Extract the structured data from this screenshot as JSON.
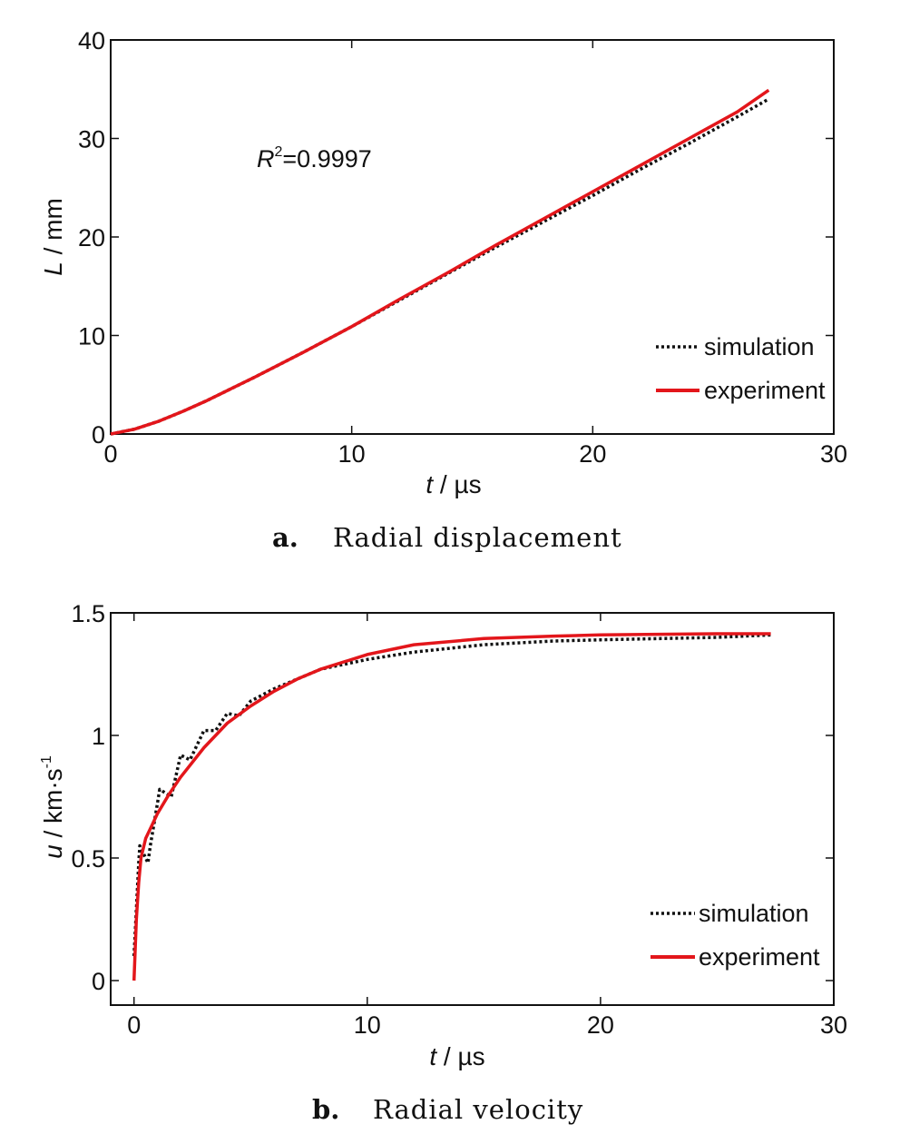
{
  "chart_data": [
    {
      "type": "line",
      "caption_letter": "a.",
      "caption": "Radial displacement",
      "xlabel_var": "t",
      "xlabel_unit": " / µs",
      "ylabel_var": "L",
      "ylabel_unit": " / mm",
      "xlim": [
        0,
        30
      ],
      "ylim": [
        0,
        40
      ],
      "xticks": [
        0,
        10,
        20,
        30
      ],
      "yticks": [
        0,
        10,
        20,
        30,
        40
      ],
      "annotation_var": "R",
      "annotation_sup": "2",
      "annotation_value": "=0.9997",
      "legend_position": "bottom-right",
      "grid": false,
      "series": [
        {
          "name": "simulation",
          "color": "#111111",
          "style": "dotted",
          "x": [
            0,
            1,
            2,
            3,
            4,
            5,
            6,
            8,
            10,
            12,
            14,
            16,
            18,
            20,
            22,
            24,
            26,
            27.3
          ],
          "y": [
            0,
            0.5,
            1.3,
            2.3,
            3.4,
            4.6,
            5.8,
            8.3,
            10.9,
            13.6,
            16.3,
            19.0,
            21.6,
            24.2,
            26.9,
            29.5,
            32.2,
            34.0
          ]
        },
        {
          "name": "experiment",
          "color": "#e3161b",
          "style": "solid",
          "x": [
            0,
            1,
            2,
            3,
            4,
            5,
            6,
            8,
            10,
            12,
            14,
            16,
            18,
            20,
            22,
            24,
            26,
            27.3
          ],
          "y": [
            0,
            0.5,
            1.3,
            2.3,
            3.4,
            4.6,
            5.8,
            8.3,
            10.9,
            13.7,
            16.4,
            19.2,
            21.9,
            24.6,
            27.3,
            30.0,
            32.7,
            34.9
          ]
        }
      ]
    },
    {
      "type": "line",
      "caption_letter": "b.",
      "caption": "Radial velocity",
      "xlabel_var": "t",
      "xlabel_unit": " / µs",
      "ylabel_var": "u",
      "ylabel_unit": " / km·s",
      "ylabel_sup": "-1",
      "xlim": [
        -1,
        30
      ],
      "ylim": [
        -0.1,
        1.5
      ],
      "xticks": [
        0,
        10,
        20,
        30
      ],
      "yticks": [
        0,
        0.5,
        1,
        1.5
      ],
      "legend_position": "bottom-right",
      "grid": false,
      "series": [
        {
          "name": "simulation",
          "color": "#111111",
          "style": "dotted",
          "x": [
            0,
            0.2,
            0.25,
            0.6,
            0.7,
            1.0,
            1.1,
            1.6,
            2.0,
            2.4,
            3.0,
            3.5,
            4.0,
            4.5,
            5.0,
            6.0,
            7.0,
            8.0,
            10.0,
            12.0,
            15.0,
            18.0,
            20.0,
            25.0,
            27.3
          ],
          "y": [
            0.1,
            0.48,
            0.55,
            0.48,
            0.55,
            0.72,
            0.78,
            0.75,
            0.92,
            0.9,
            1.02,
            1.02,
            1.09,
            1.08,
            1.14,
            1.19,
            1.23,
            1.27,
            1.31,
            1.34,
            1.37,
            1.385,
            1.39,
            1.4,
            1.41
          ]
        },
        {
          "name": "experiment",
          "color": "#e3161b",
          "style": "solid",
          "x": [
            0,
            0.1,
            0.2,
            0.3,
            0.5,
            0.8,
            1.0,
            1.5,
            2.0,
            3.0,
            4.0,
            5.0,
            6.0,
            7.0,
            8.0,
            10.0,
            12.0,
            15.0,
            18.0,
            20.0,
            25.0,
            27.3
          ],
          "y": [
            0,
            0.25,
            0.4,
            0.5,
            0.58,
            0.64,
            0.68,
            0.76,
            0.83,
            0.95,
            1.05,
            1.12,
            1.18,
            1.23,
            1.27,
            1.33,
            1.37,
            1.395,
            1.405,
            1.41,
            1.415,
            1.415
          ]
        }
      ]
    }
  ]
}
